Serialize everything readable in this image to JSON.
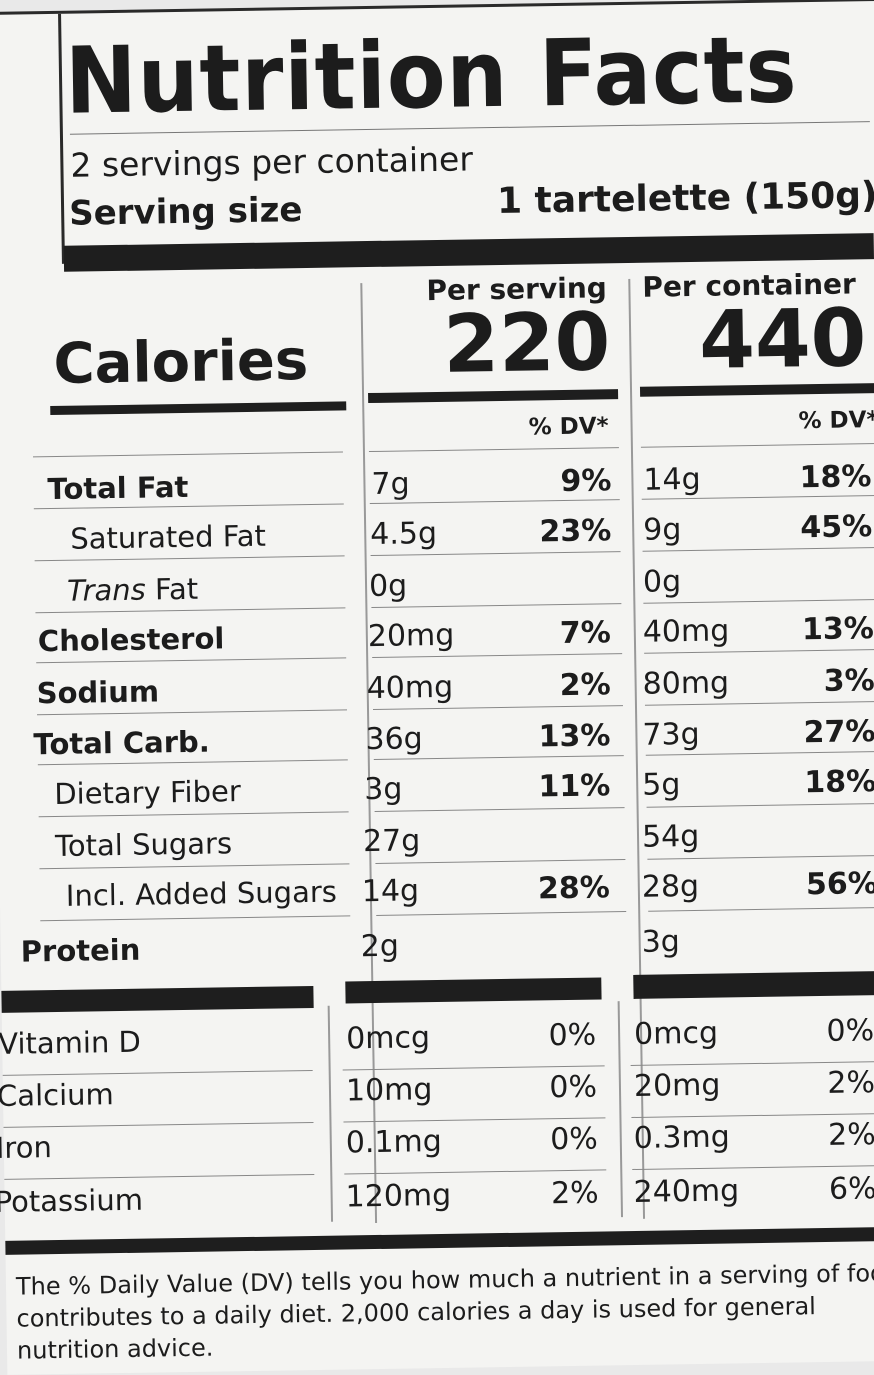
{
  "title": "Nutrition Facts",
  "servings_per_container": "2 servings per container",
  "serving_size_label": "Serving size",
  "serving_size_value": "1 tartelette (150g)",
  "per_serving_label": "Per serving",
  "per_container_label": "Per container",
  "calories_label": "Calories",
  "calories_serving": "220",
  "calories_container": "440",
  "dv_header": "% DV*",
  "nutrients": [
    {
      "name": "Total Fat",
      "serving": "7g",
      "serving_dv": "9%",
      "container": "14g",
      "container_dv": "18%"
    },
    {
      "name": "Saturated Fat",
      "serving": "4.5g",
      "serving_dv": "23%",
      "container": "9g",
      "container_dv": "45%"
    },
    {
      "name": "Fat",
      "serving": "0g",
      "serving_dv": "",
      "container": "0g",
      "container_dv": ""
    },
    {
      "name": "Cholesterol",
      "serving": "20mg",
      "serving_dv": "7%",
      "container": "40mg",
      "container_dv": "13%"
    },
    {
      "name": "Sodium",
      "serving": "40mg",
      "serving_dv": "2%",
      "container": "80mg",
      "container_dv": "3%"
    },
    {
      "name": "Total Carb.",
      "serving": "36g",
      "serving_dv": "13%",
      "container": "73g",
      "container_dv": "27%"
    },
    {
      "name": "Dietary Fiber",
      "serving": "3g",
      "serving_dv": "11%",
      "container": "5g",
      "container_dv": "18%"
    },
    {
      "name": "Total Sugars",
      "serving": "27g",
      "serving_dv": "",
      "container": "54g",
      "container_dv": ""
    },
    {
      "name": "Incl. Added Sugars",
      "serving": "14g",
      "serving_dv": "28%",
      "container": "28g",
      "container_dv": "56%"
    },
    {
      "name": "Protein",
      "serving": "2g",
      "serving_dv": "",
      "container": "3g",
      "container_dv": ""
    }
  ],
  "trans_prefix": "Trans",
  "vitamins": [
    {
      "name": "Vitamin D",
      "serving": "0mcg",
      "serving_dv": "0%",
      "container": "0mcg",
      "container_dv": "0%"
    },
    {
      "name": "Calcium",
      "serving": "10mg",
      "serving_dv": "0%",
      "container": "20mg",
      "container_dv": "2%"
    },
    {
      "name": "Iron",
      "serving": "0.1mg",
      "serving_dv": "0%",
      "container": "0.3mg",
      "container_dv": "2%"
    },
    {
      "name": "Potassium",
      "serving": "120mg",
      "serving_dv": "2%",
      "container": "240mg",
      "container_dv": "6%"
    }
  ],
  "footnote": [
    "The % Daily Value (DV) tells you how much a nutrient in a serving of food",
    "contributes to a daily diet. 2,000 calories a day is used for general",
    "nutrition advice."
  ]
}
